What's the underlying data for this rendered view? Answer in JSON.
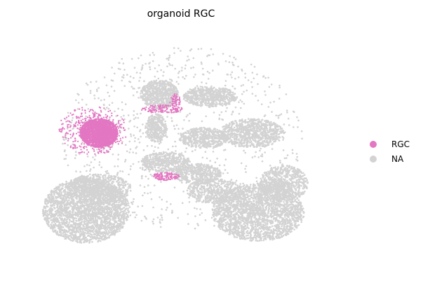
{
  "chart_data": {
    "type": "scatter",
    "title": "organoid RGC",
    "xlabel": "",
    "ylabel": "",
    "axes_visible": false,
    "grid": false,
    "legend_position": "right",
    "categories": [
      {
        "name": "RGC",
        "color": "#e377c2"
      },
      {
        "name": "NA",
        "color": "#d3d3d3"
      }
    ],
    "xlim": [
      0,
      100
    ],
    "ylim": [
      0,
      100
    ],
    "clusters": [
      {
        "category": "NA",
        "shape": "ellipse",
        "cx": 20,
        "cy": 25,
        "rx": 16,
        "ry": 16,
        "n": 2600
      },
      {
        "category": "NA",
        "shape": "ellipse",
        "cx": 24,
        "cy": 34,
        "rx": 12,
        "ry": 7,
        "n": 600
      },
      {
        "category": "NA",
        "shape": "ellipse",
        "cx": 74,
        "cy": 24,
        "rx": 17,
        "ry": 14,
        "n": 2200
      },
      {
        "category": "NA",
        "shape": "ellipse",
        "cx": 82,
        "cy": 36,
        "rx": 9,
        "ry": 9,
        "n": 700
      },
      {
        "category": "NA",
        "shape": "ellipse",
        "cx": 60,
        "cy": 33,
        "rx": 10,
        "ry": 6,
        "n": 500
      },
      {
        "category": "NA",
        "shape": "ellipse",
        "cx": 43,
        "cy": 73,
        "rx": 7,
        "ry": 7,
        "n": 650
      },
      {
        "category": "NA",
        "shape": "ellipse",
        "cx": 42,
        "cy": 59,
        "rx": 4,
        "ry": 7,
        "n": 350
      },
      {
        "category": "NA",
        "shape": "ellipse",
        "cx": 59,
        "cy": 72,
        "rx": 10,
        "ry": 5,
        "n": 600
      },
      {
        "category": "NA",
        "shape": "ellipse",
        "cx": 72,
        "cy": 57,
        "rx": 12,
        "ry": 7,
        "n": 800
      },
      {
        "category": "NA",
        "shape": "ellipse",
        "cx": 57,
        "cy": 55,
        "rx": 9,
        "ry": 5,
        "n": 500
      },
      {
        "category": "NA",
        "shape": "ellipse",
        "cx": 45,
        "cy": 45,
        "rx": 9,
        "ry": 5,
        "n": 450
      },
      {
        "category": "NA",
        "shape": "ellipse",
        "cx": 55,
        "cy": 40,
        "rx": 9,
        "ry": 5,
        "n": 450
      },
      {
        "category": "NA",
        "shape": "scatter",
        "cx": 50,
        "cy": 55,
        "rx": 38,
        "ry": 38,
        "n": 900
      },
      {
        "category": "RGC",
        "shape": "ellipse",
        "cx": 24,
        "cy": 57,
        "rx": 7,
        "ry": 7,
        "n": 2400
      },
      {
        "category": "RGC",
        "shape": "scatter",
        "cx": 22,
        "cy": 58,
        "rx": 11,
        "ry": 10,
        "n": 400
      },
      {
        "category": "RGC",
        "shape": "ellipse",
        "cx": 45,
        "cy": 39,
        "rx": 5,
        "ry": 2,
        "n": 120
      },
      {
        "category": "RGC",
        "shape": "ellipse",
        "cx": 44,
        "cy": 67,
        "rx": 8,
        "ry": 2,
        "n": 120
      },
      {
        "category": "RGC",
        "shape": "ellipse",
        "cx": 48,
        "cy": 70,
        "rx": 2,
        "ry": 4,
        "n": 60
      }
    ]
  }
}
